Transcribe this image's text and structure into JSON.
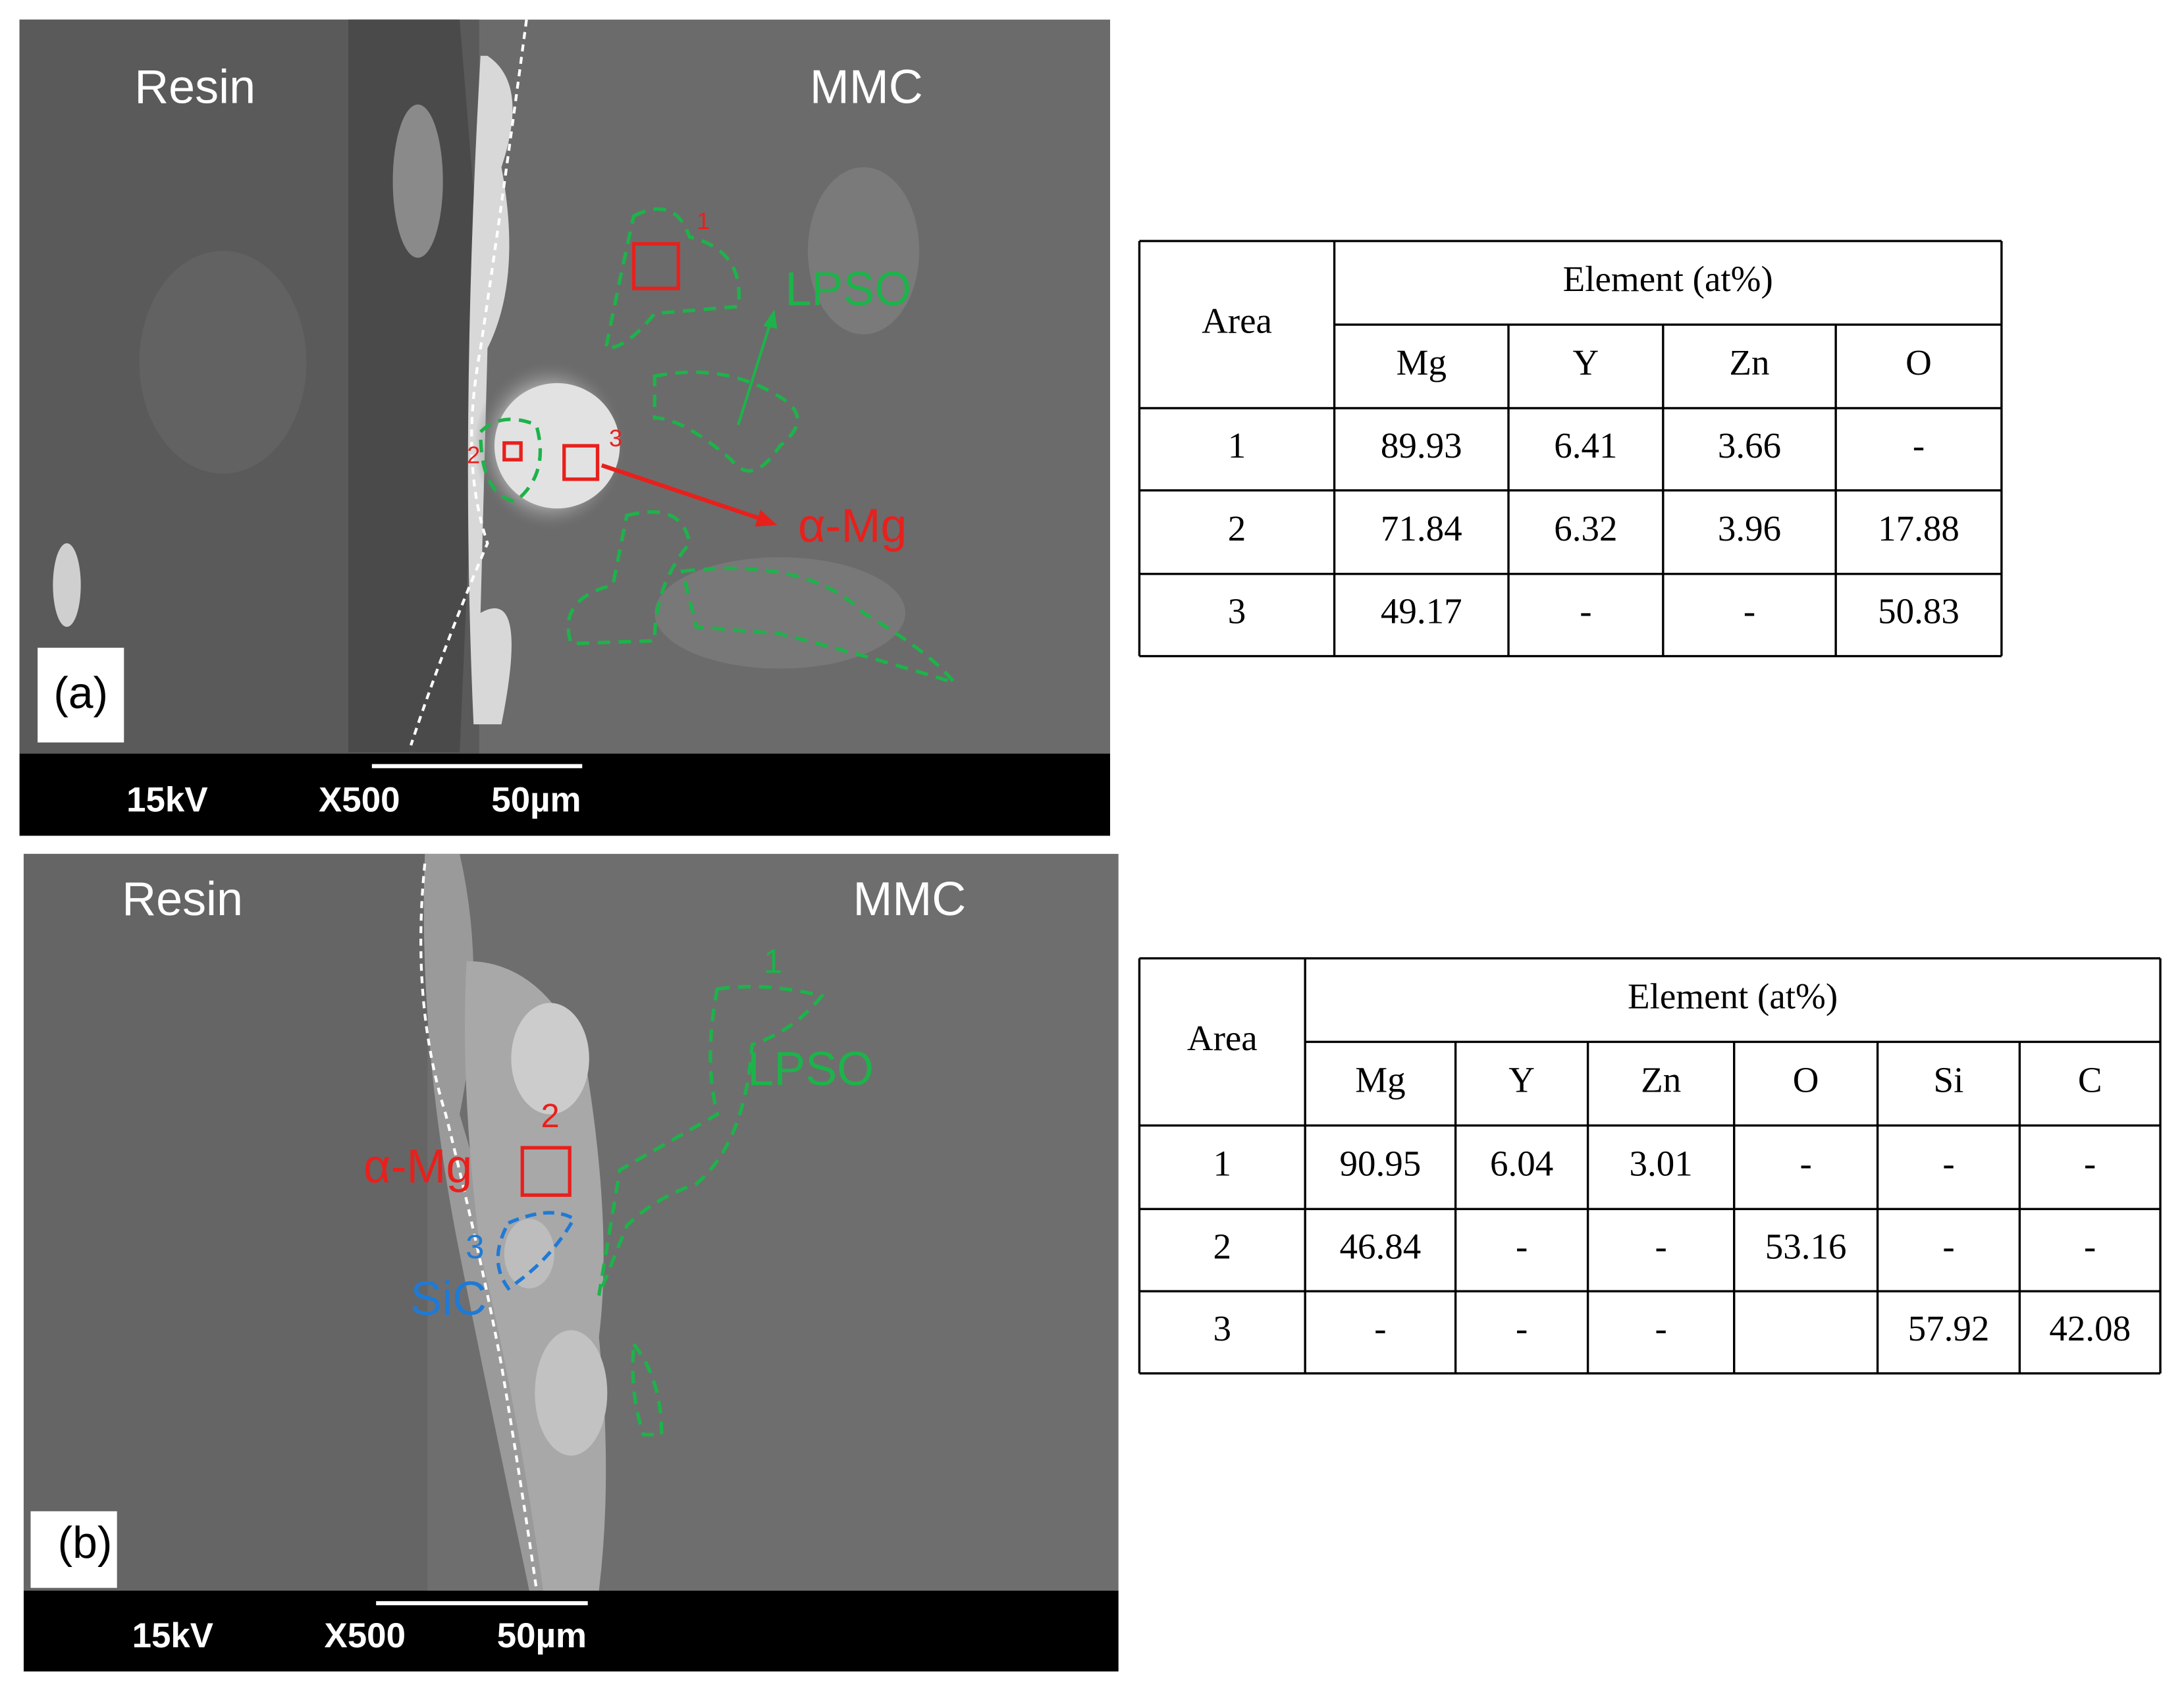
{
  "panels": [
    {
      "label": "(a)",
      "left_text": "Resin",
      "right_text": "MMC",
      "phase_labels": [
        "LPSO",
        "α-Mg"
      ],
      "area_labels": [
        "1",
        "2",
        "3"
      ],
      "scale_bar": {
        "voltage": "15kV",
        "magnification": "X500",
        "length": "50µm"
      }
    },
    {
      "label": "(b)",
      "left_text": "Resin",
      "right_text": "MMC",
      "phase_labels": [
        "LPSO",
        "α-Mg",
        "SiC"
      ],
      "area_labels": [
        "1",
        "2",
        "3"
      ],
      "scale_bar": {
        "voltage": "15kV",
        "magnification": "X500",
        "length": "50µm"
      }
    }
  ],
  "tables": [
    {
      "area_header": "Area",
      "group_header": "Element (at%)",
      "columns": [
        "Mg",
        "Y",
        "Zn",
        "O"
      ],
      "rows": [
        [
          "1",
          89.93,
          6.41,
          3.66,
          "-"
        ],
        [
          "2",
          71.84,
          6.32,
          3.96,
          17.88
        ],
        [
          "3",
          49.17,
          "-",
          "-",
          50.83
        ]
      ]
    },
    {
      "area_header": "Area",
      "group_header": "Element (at%)",
      "columns": [
        "Mg",
        "Y",
        "Zn",
        "O",
        "Si",
        "C"
      ],
      "rows": [
        [
          "1",
          90.95,
          6.04,
          3.01,
          "-",
          "-",
          "-"
        ],
        [
          "2",
          46.84,
          "-",
          "-",
          53.16,
          "-",
          "-"
        ],
        [
          "3",
          "-",
          "-",
          "-",
          null,
          57.92,
          42.08
        ]
      ]
    }
  ]
}
